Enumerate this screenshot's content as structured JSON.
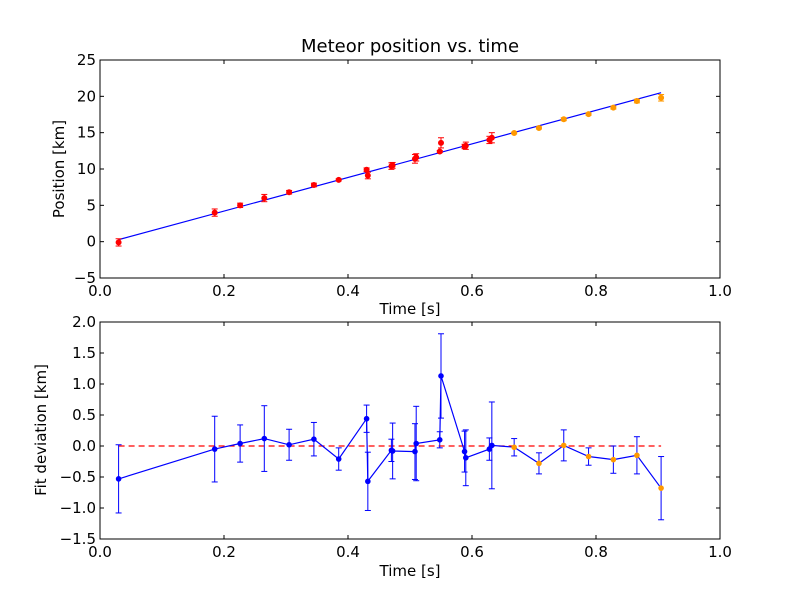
{
  "chart_data": [
    {
      "type": "scatter",
      "title": "Meteor position vs. time",
      "xlabel": "Time [s]",
      "ylabel": "Position [km]",
      "xlim": [
        0.0,
        1.0
      ],
      "ylim": [
        -5,
        25
      ],
      "xticks": [
        "0.0",
        "0.2",
        "0.4",
        "0.6",
        "0.8",
        "1.0"
      ],
      "yticks": [
        "−5",
        "0",
        "5",
        "10",
        "15",
        "20",
        "25"
      ],
      "fit_line": {
        "color": "#0000ff",
        "x": [
          0.03,
          0.905
        ],
        "y": [
          0.28,
          20.5
        ]
      },
      "series": [
        {
          "color": "#ff0000",
          "x": [
            0.03,
            0.185,
            0.226,
            0.265,
            0.305,
            0.345,
            0.385,
            0.43,
            0.432,
            0.47,
            0.472,
            0.508,
            0.51,
            0.548,
            0.55,
            0.588,
            0.59,
            0.628,
            0.632
          ],
          "y": [
            -0.1,
            4.0,
            5.0,
            6.0,
            6.8,
            7.8,
            8.5,
            9.9,
            9.1,
            10.4,
            10.5,
            11.4,
            11.6,
            12.4,
            13.6,
            13.1,
            13.2,
            14.0,
            14.3
          ],
          "err": [
            0.5,
            0.5,
            0.3,
            0.5,
            0.25,
            0.25,
            0.15,
            0.25,
            0.45,
            0.45,
            0.4,
            0.6,
            0.5,
            0.15,
            0.7,
            0.3,
            0.5,
            0.5,
            0.7
          ]
        },
        {
          "color": "#ff9900",
          "x": [
            0.668,
            0.708,
            0.748,
            0.788,
            0.828,
            0.866,
            0.905
          ],
          "y": [
            14.95,
            15.65,
            16.85,
            17.55,
            18.45,
            19.35,
            19.8
          ],
          "err": [
            0.12,
            0.15,
            0.2,
            0.15,
            0.2,
            0.25,
            0.45
          ]
        }
      ]
    },
    {
      "type": "line",
      "xlabel": "Time [s]",
      "ylabel": "Fit deviation [km]",
      "xlim": [
        0.0,
        1.0
      ],
      "ylim": [
        -1.5,
        2.0
      ],
      "xticks": [
        "0.0",
        "0.2",
        "0.4",
        "0.6",
        "0.8",
        "1.0"
      ],
      "yticks": [
        "−1.5",
        "−1.0",
        "−0.5",
        "0.0",
        "0.5",
        "1.0",
        "1.5",
        "2.0"
      ],
      "zero_line": {
        "color": "#ff0000",
        "x": [
          0.03,
          0.905
        ],
        "y": 0.0
      },
      "series": [
        {
          "color": "#0000ff",
          "x": [
            0.03,
            0.185,
            0.226,
            0.265,
            0.305,
            0.345,
            0.385,
            0.43,
            0.432,
            0.47,
            0.472,
            0.508,
            0.51,
            0.548,
            0.55,
            0.588,
            0.59,
            0.628,
            0.632,
            0.668,
            0.708,
            0.748,
            0.788,
            0.828,
            0.866,
            0.905
          ],
          "y": [
            -0.53,
            -0.05,
            0.04,
            0.12,
            0.02,
            0.11,
            -0.21,
            0.44,
            -0.57,
            -0.07,
            -0.08,
            -0.09,
            0.04,
            0.1,
            1.13,
            -0.09,
            -0.19,
            -0.05,
            0.01,
            -0.02,
            -0.28,
            0.01,
            -0.17,
            -0.22,
            -0.15,
            -0.68
          ],
          "err": [
            0.55,
            0.53,
            0.3,
            0.53,
            0.25,
            0.27,
            0.18,
            0.22,
            0.47,
            0.18,
            0.45,
            0.45,
            0.6,
            0.13,
            0.68,
            0.33,
            0.45,
            0.18,
            0.7,
            0.14,
            0.17,
            0.25,
            0.14,
            0.22,
            0.3,
            0.51
          ],
          "marker_colors": [
            "#0000ff",
            "#0000ff",
            "#0000ff",
            "#0000ff",
            "#0000ff",
            "#0000ff",
            "#0000ff",
            "#0000ff",
            "#0000ff",
            "#0000ff",
            "#0000ff",
            "#0000ff",
            "#0000ff",
            "#0000ff",
            "#0000ff",
            "#0000ff",
            "#0000ff",
            "#0000ff",
            "#0000ff",
            "#ff9900",
            "#ff9900",
            "#ff9900",
            "#ff9900",
            "#ff9900",
            "#ff9900",
            "#ff9900"
          ]
        }
      ]
    }
  ]
}
